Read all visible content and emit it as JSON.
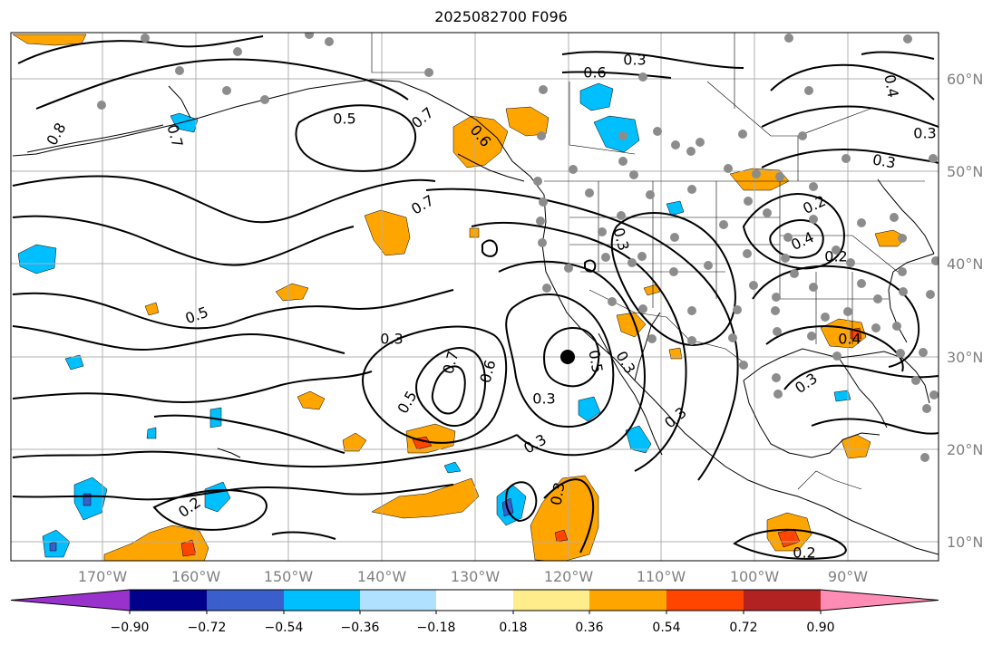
{
  "title": "2025082700 F096",
  "lon_labels": [
    "170°W",
    "160°W",
    "150°W",
    "140°W",
    "130°W",
    "120°W",
    "110°W",
    "100°W",
    "90°W"
  ],
  "lat_labels": [
    "60°N",
    "50°N",
    "40°N",
    "30°N",
    "20°N",
    "10°N"
  ],
  "contour_labels": [
    "0.8",
    "0.7",
    "0.5",
    "0.7",
    "0.7",
    "0.6",
    "0.3",
    "0.6",
    "0.3",
    "0.3",
    "0.4",
    "0.2",
    "0.4",
    "0.2",
    "0.4",
    "0.3",
    "0.5",
    "0.7",
    "0.6",
    "0.5",
    "0.3",
    "0.3",
    "0.3",
    "0.3",
    "0.3",
    "0.2",
    "0.3",
    "0.3",
    "0.2",
    "0.5"
  ],
  "colorbar": {
    "tick_labels": [
      "−0.90",
      "−0.72",
      "−0.54",
      "−0.36",
      "−0.18",
      "0.18",
      "0.36",
      "0.54",
      "0.72",
      "0.90"
    ],
    "colors": [
      "#9932cc",
      "#00008b",
      "#3a5fcd",
      "#00bfff",
      "#b0e2ff",
      "#ffffff",
      "#ffec8b",
      "#ffa500",
      "#ff4500",
      "#b22222",
      "#ff8cb4"
    ]
  },
  "colors": {
    "land_dots": "#8c8c8c",
    "grid": "#b0b0b0",
    "tick_text": "#808080"
  }
}
